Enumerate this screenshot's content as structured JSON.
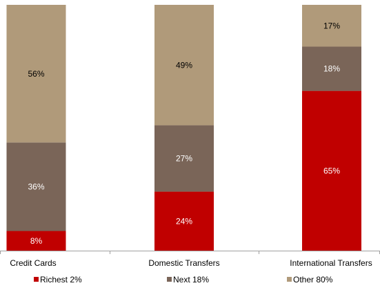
{
  "chart_data": {
    "type": "bar",
    "stacked": true,
    "normalized_percent": true,
    "categories": [
      "Credit Cards",
      "Domestic Transfers",
      "International Transfers"
    ],
    "series": [
      {
        "name": "Richest 2%",
        "color": "#c00000",
        "values": [
          8,
          24,
          65
        ],
        "labels": [
          "8%",
          "24%",
          "65%"
        ]
      },
      {
        "name": "Next 18%",
        "color": "#7a6558",
        "values": [
          36,
          27,
          18
        ],
        "labels": [
          "36%",
          "27%",
          "18%"
        ]
      },
      {
        "name": "Other 80%",
        "color": "#b09a7a",
        "values": [
          56,
          49,
          17
        ],
        "labels": [
          "56%",
          "49%",
          "17%"
        ]
      }
    ],
    "ylim": [
      0,
      100
    ],
    "label_colors": {
      "Richest 2%": "#ffffff",
      "Next 18%": "#ffffff",
      "Other 80%": "#000000"
    },
    "grid": false,
    "legend_position": "bottom"
  }
}
